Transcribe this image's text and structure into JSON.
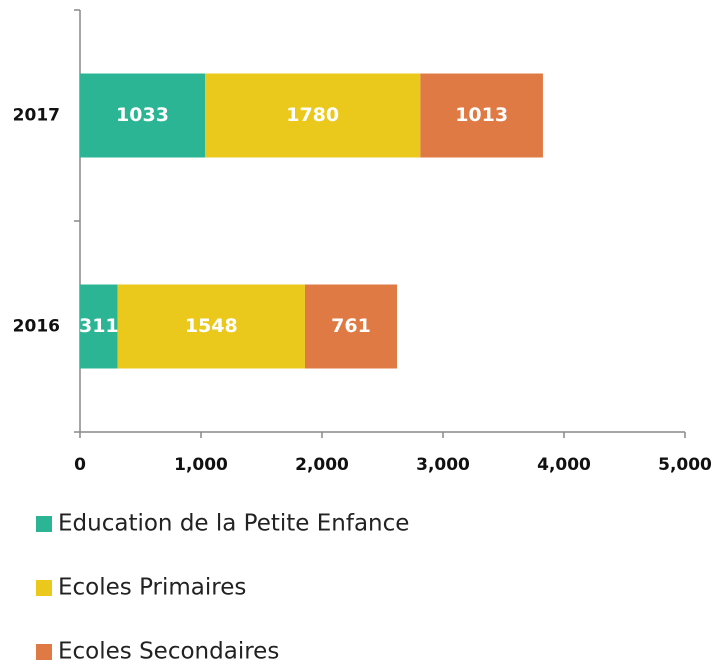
{
  "chart_data": {
    "type": "stacked-bar-horizontal",
    "categories": [
      "2017",
      "2016"
    ],
    "series": [
      {
        "name": "Education de la Petite Enfance",
        "color": "#2bb594",
        "values": [
          1033,
          311
        ]
      },
      {
        "name": "Ecoles Primaires",
        "color": "#ebc91c",
        "values": [
          1780,
          1548
        ]
      },
      {
        "name": "Ecoles Secondaires",
        "color": "#e07a45",
        "values": [
          1013,
          761
        ]
      }
    ],
    "xlim": [
      0,
      5000
    ],
    "xticks": [
      0,
      {
        "value": 1000,
        "label": "1,000"
      },
      {
        "value": 2000,
        "label": "2,000"
      },
      {
        "value": 3000,
        "label": "3,000"
      },
      {
        "value": 4000,
        "label": "4,000"
      },
      {
        "value": 5000,
        "label": "5,000"
      }
    ],
    "legend": "bottom"
  }
}
